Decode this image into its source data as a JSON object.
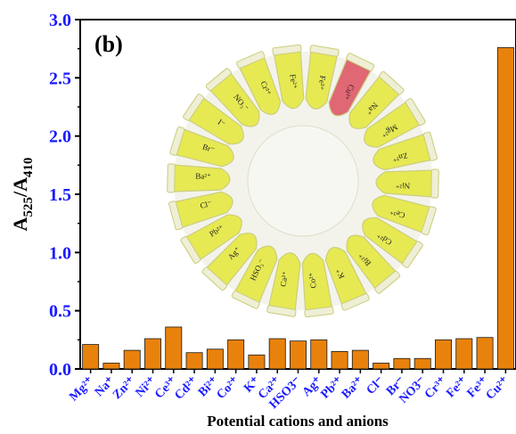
{
  "panel_label": "(b)",
  "inset": {
    "tube_labels": [
      "Fe²⁺",
      "Fe³⁺",
      "Cu²⁺",
      "Na⁺",
      "Mg²⁺",
      "Zn²⁺",
      "Ni²⁺",
      "Ce³⁺",
      "Cd²⁺",
      "Bi²⁺",
      "K⁺",
      "Co²⁺",
      "Ca²⁺",
      "HSO₃⁻",
      "Ag⁺",
      "Pb²⁺",
      "Cl⁻",
      "Ba²⁺",
      "Br⁻",
      "I⁻",
      "NO₃⁻",
      "Cr³⁺"
    ],
    "colors": {
      "yellow_solution": "#e6e94a",
      "red_solution": "#e0606e",
      "tube_edge": "#c9cc7a"
    }
  },
  "chart_data": {
    "type": "bar",
    "xlabel": "Potential cations and anions",
    "ylabel_main": "A",
    "ylabel_sub1": "525",
    "ylabel_slash": "/A",
    "ylabel_sub2": "410",
    "ylim": [
      0,
      3.0
    ],
    "yticks": [
      "0.0",
      "0.5",
      "1.0",
      "1.5",
      "2.0",
      "2.5",
      "3.0"
    ],
    "bar_color": "#e8820c",
    "bar_edge": "#1a1a1a",
    "tick_color": "#1a1aff",
    "categories": [
      "Mg²⁺",
      "Na⁺",
      "Zn²⁺",
      "Ni²⁺",
      "Ce³⁺",
      "Cd²⁺",
      "Bi²⁺",
      "Co²⁺",
      "K⁺",
      "Ca²⁺",
      "HSO3⁻",
      "Ag⁺",
      "Pb²⁺",
      "Ba²⁺",
      "Cl⁻",
      "Br⁻",
      "NO3⁻",
      "Cr³⁺",
      "Fe²⁺",
      "Fe³⁺",
      "Cu²⁺"
    ],
    "values": [
      0.21,
      0.05,
      0.16,
      0.26,
      0.36,
      0.14,
      0.17,
      0.25,
      0.12,
      0.26,
      0.24,
      0.25,
      0.15,
      0.16,
      0.05,
      0.09,
      0.09,
      0.25,
      0.26,
      0.27,
      2.76
    ]
  }
}
